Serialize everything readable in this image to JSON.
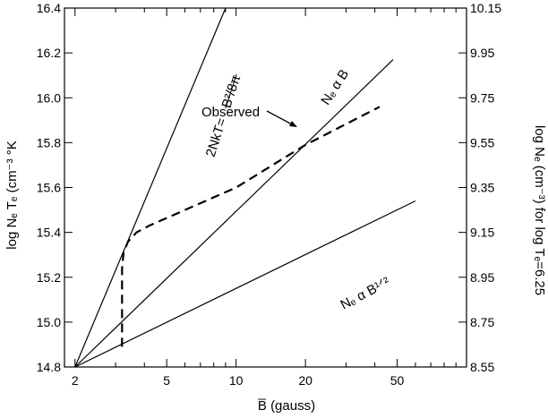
{
  "chart_data": {
    "type": "line",
    "title": "",
    "xlabel": "B̅ (gauss)",
    "ylabel_left": "log Nₑ Tₑ (cm⁻³ °K",
    "ylabel_right": "log Nₑ (cm⁻³) for log Tₑ=6.25",
    "x_scale": "log",
    "xlim": [
      1.8,
      100
    ],
    "ylim_left": [
      14.8,
      16.4
    ],
    "ylim_right": [
      8.55,
      10.15
    ],
    "x_ticks": [
      2,
      5,
      10,
      20,
      50
    ],
    "x_tick_labels": [
      "2",
      "5",
      "10",
      "20",
      "50"
    ],
    "y_left_ticks": [
      14.8,
      15.0,
      15.2,
      15.4,
      15.6,
      15.8,
      16.0,
      16.2,
      16.4
    ],
    "y_left_tick_labels": [
      "14.8",
      "15.0",
      "15.2",
      "15.4",
      "15.6",
      "15.8",
      "16.0",
      "16.2",
      "16.4"
    ],
    "y_right_ticks": [
      8.55,
      8.75,
      8.95,
      9.15,
      9.35,
      9.55,
      9.75,
      9.95,
      10.15
    ],
    "y_right_tick_labels": [
      "8.55",
      "8.75",
      "8.95",
      "9.15",
      "9.35",
      "9.55",
      "9.75",
      "9.95",
      "10.15"
    ],
    "grid": false,
    "series": [
      {
        "name": "2NkT = B²/8π",
        "style": "solid",
        "x": [
          2,
          9
        ],
        "y": [
          14.8,
          16.4
        ]
      },
      {
        "name": "Nₑ α B",
        "style": "solid",
        "x": [
          2,
          48
        ],
        "y": [
          14.8,
          16.17
        ]
      },
      {
        "name": "Nₑ α B¹ᐟ²",
        "style": "solid",
        "x": [
          2,
          60
        ],
        "y": [
          14.8,
          15.54
        ]
      },
      {
        "name": "Observed",
        "style": "dashed",
        "x": [
          3.2,
          3.2,
          3.25,
          3.4,
          3.7,
          4.2,
          10,
          20,
          42
        ],
        "y": [
          14.89,
          15.24,
          15.31,
          15.36,
          15.4,
          15.43,
          15.6,
          15.79,
          15.96
        ]
      }
    ],
    "annotations": [
      {
        "text": "2NkT=",
        "fraction": "B²/8π"
      },
      {
        "text": "Nₑ α B"
      },
      {
        "text": "Nₑ α B¹ᐟ²"
      },
      {
        "text": "Observed"
      }
    ]
  }
}
